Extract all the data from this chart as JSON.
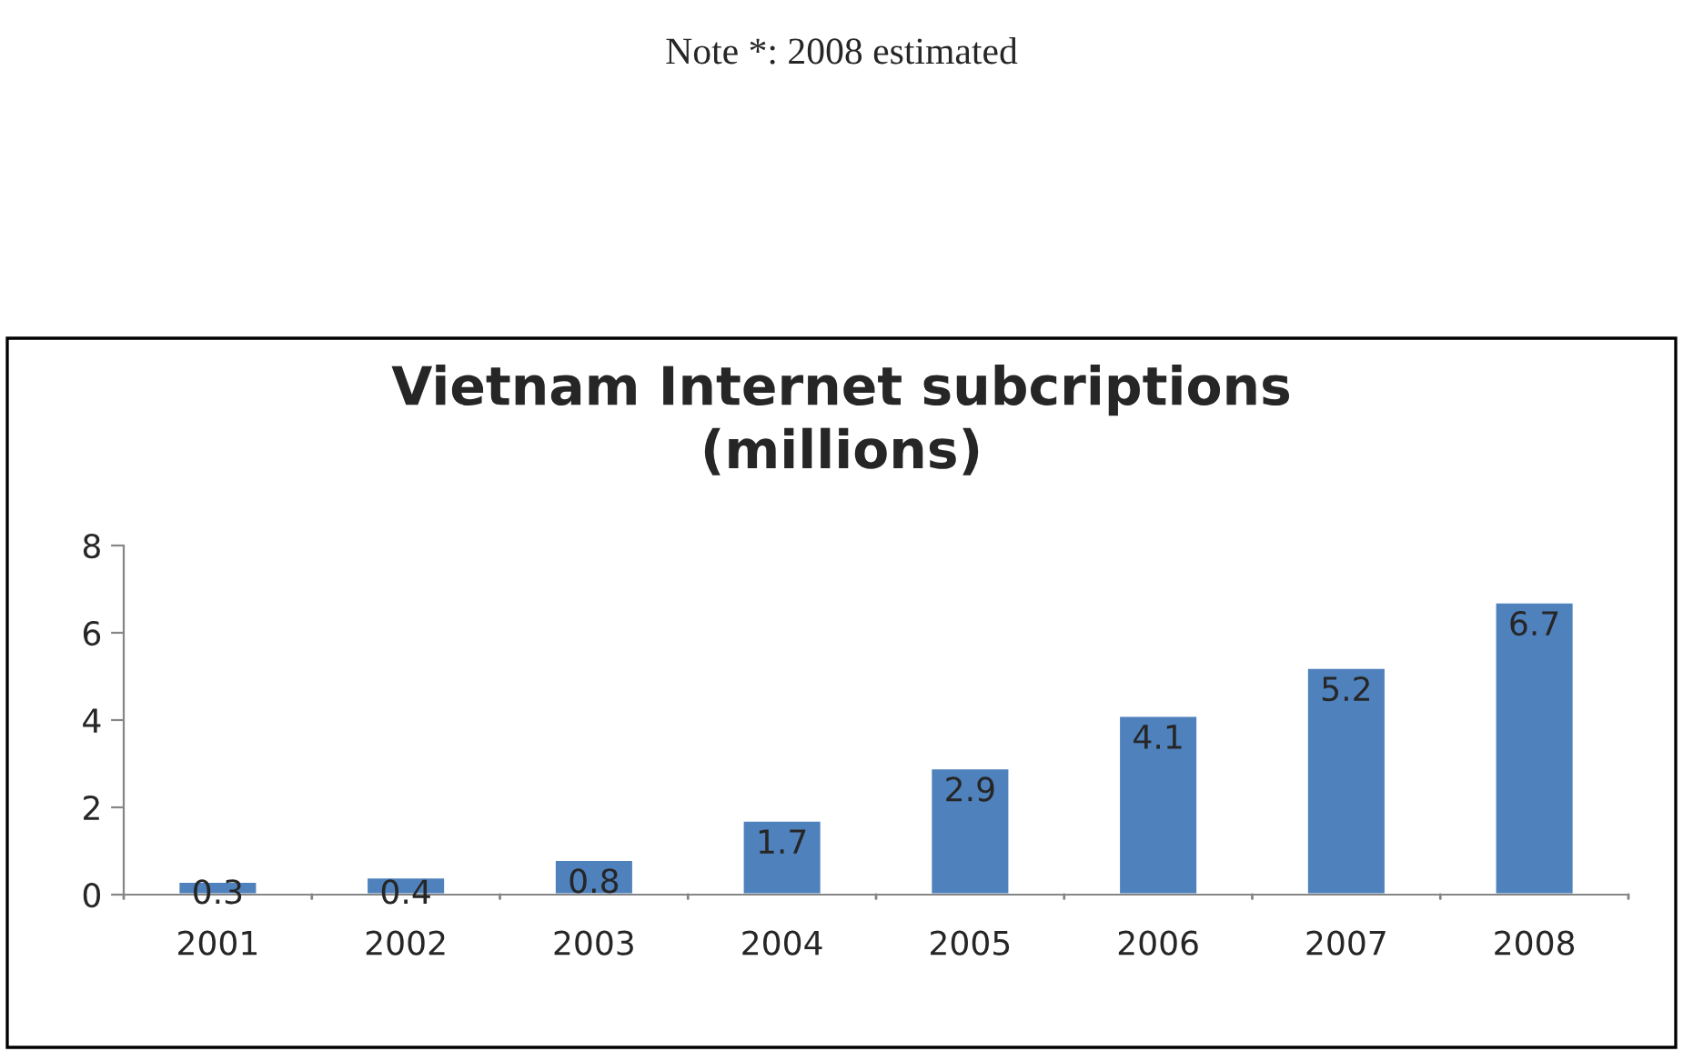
{
  "chart_data": {
    "type": "bar",
    "title": "Vietnam Internet subcriptions\n(millions)",
    "categories": [
      "2001",
      "2002",
      "2003",
      "2004",
      "2005",
      "2006",
      "2007",
      "2008"
    ],
    "values": [
      0.3,
      0.4,
      0.8,
      1.7,
      2.9,
      4.1,
      5.2,
      6.7
    ],
    "color": "#4f81bd",
    "ylim": [
      0,
      8
    ],
    "yticks": [
      0,
      2,
      4,
      6,
      8
    ],
    "grid": false,
    "data_labels": true,
    "annotations": [
      "Note *: 2008 estimated"
    ]
  }
}
